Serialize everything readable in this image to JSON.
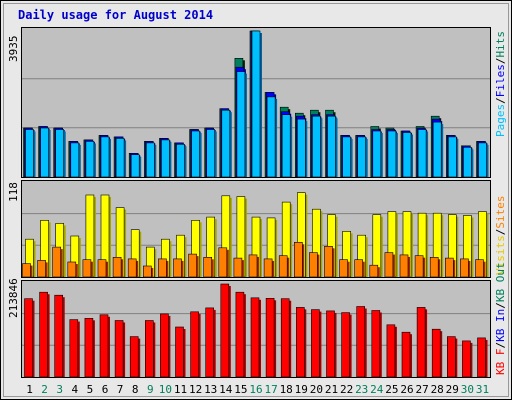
{
  "chart_data": [
    {
      "type": "bar",
      "title": "Daily usage for August 2014",
      "axis_max_label": "3935",
      "right_labels": [
        {
          "text": "Pages",
          "color": "#00bfff"
        },
        {
          "text": "Files",
          "color": "#0000ff"
        },
        {
          "text": "Hits",
          "color": "#00805c"
        }
      ],
      "categories": [
        "1",
        "2",
        "3",
        "4",
        "5",
        "6",
        "7",
        "8",
        "9",
        "10",
        "11",
        "12",
        "13",
        "14",
        "15",
        "16",
        "17",
        "18",
        "19",
        "20",
        "21",
        "22",
        "23",
        "24",
        "25",
        "26",
        "27",
        "28",
        "29",
        "30",
        "31"
      ],
      "weekend_days": [
        "2",
        "3",
        "9",
        "10",
        "16",
        "17",
        "23",
        "24",
        "30",
        "31"
      ],
      "ylim": [
        0,
        3935
      ],
      "series": [
        {
          "name": "Hits",
          "color": "#00805c",
          "values": [
            1320,
            1360,
            1320,
            960,
            1000,
            1120,
            1080,
            640,
            960,
            1040,
            920,
            1280,
            1320,
            1840,
            3200,
            3935,
            2280,
            1880,
            1720,
            1800,
            1800,
            1120,
            1120,
            1360,
            1320,
            1240,
            1360,
            1640,
            1120,
            840,
            960
          ]
        },
        {
          "name": "Files",
          "color": "#0000ff",
          "values": [
            1320,
            1360,
            1320,
            960,
            1000,
            1120,
            1080,
            640,
            960,
            1040,
            920,
            1280,
            1320,
            1840,
            2960,
            3935,
            2280,
            1760,
            1640,
            1680,
            1680,
            1120,
            1120,
            1280,
            1280,
            1240,
            1320,
            1560,
            1120,
            840,
            960
          ]
        },
        {
          "name": "Pages",
          "color": "#00bfff",
          "values": [
            1280,
            1320,
            1280,
            920,
            960,
            1080,
            1040,
            600,
            920,
            1000,
            880,
            1240,
            1280,
            1800,
            2840,
            3935,
            2160,
            1680,
            1560,
            1640,
            1640,
            1080,
            1080,
            1240,
            1240,
            1200,
            1280,
            1480,
            1080,
            800,
            920
          ]
        }
      ]
    },
    {
      "type": "bar",
      "axis_max_label": "118",
      "right_labels": [
        {
          "text": "Visits",
          "color": "#e6c800"
        },
        {
          "text": "Sites",
          "color": "#ff8000"
        }
      ],
      "ylim": [
        0,
        118
      ],
      "series": [
        {
          "name": "Visits",
          "color": "#ffff00",
          "values": [
            48,
            72,
            68,
            52,
            104,
            104,
            88,
            60,
            38,
            48,
            53,
            72,
            76,
            103,
            102,
            76,
            75,
            95,
            107,
            86,
            79,
            58,
            53,
            79,
            83,
            83,
            81,
            81,
            79,
            78,
            83
          ]
        },
        {
          "name": "Sites",
          "color": "#ff8000",
          "values": [
            17,
            21,
            38,
            19,
            22,
            22,
            25,
            23,
            14,
            23,
            23,
            29,
            25,
            37,
            24,
            28,
            23,
            27,
            44,
            31,
            39,
            22,
            22,
            15,
            31,
            28,
            27,
            25,
            24,
            23,
            22
          ]
        }
      ]
    },
    {
      "type": "bar",
      "axis_max_label": "213846",
      "right_labels": [
        {
          "text": "KB F",
          "color": "#ff0000"
        },
        {
          "text": "KB In",
          "color": "#0000ff"
        },
        {
          "text": "KB Out",
          "color": "#00805c"
        }
      ],
      "ylim": [
        0,
        213846
      ],
      "series": [
        {
          "name": "KB F",
          "color": "#ff0000",
          "values": [
            180000,
            195000,
            188000,
            132000,
            135000,
            143000,
            130000,
            93000,
            130000,
            145000,
            115000,
            150000,
            159000,
            213846,
            195000,
            182000,
            181000,
            180000,
            160000,
            155000,
            152000,
            148000,
            162000,
            153000,
            120000,
            103000,
            160000,
            110000,
            93000,
            83000,
            90000
          ]
        }
      ]
    }
  ]
}
